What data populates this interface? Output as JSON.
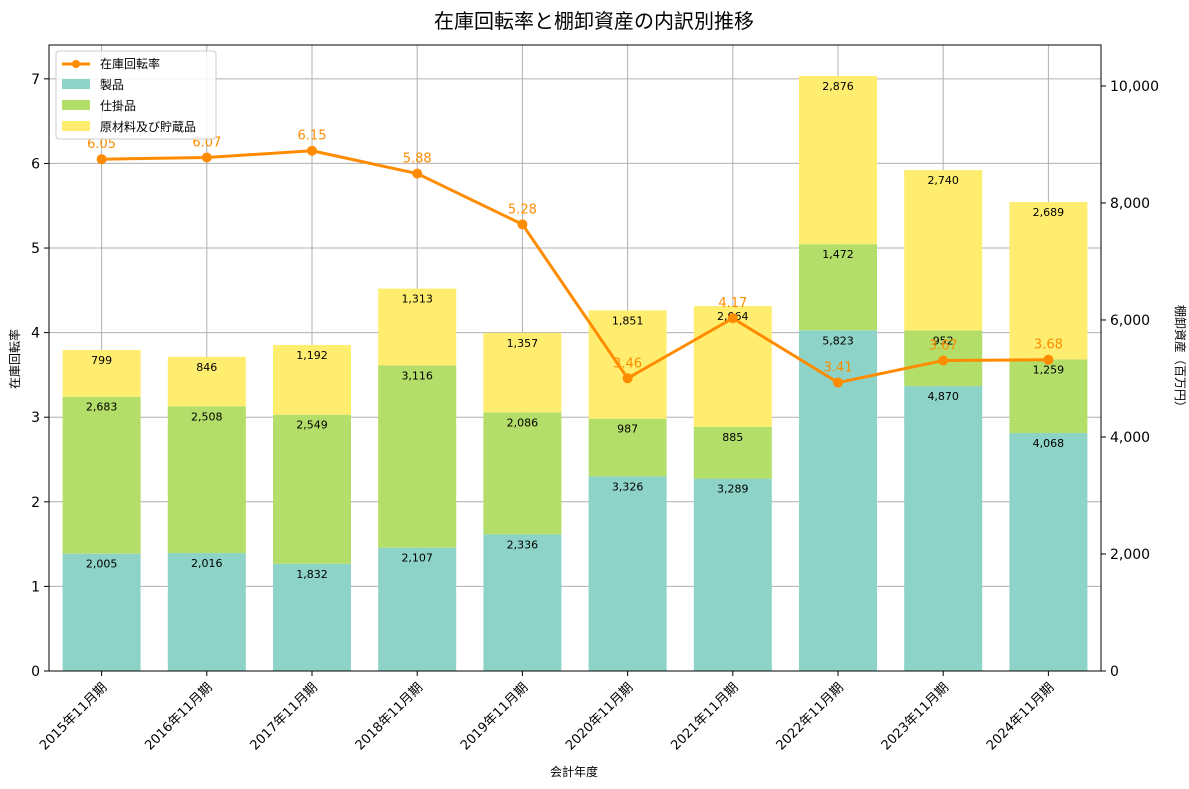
{
  "chart_data": {
    "type": "bar",
    "stacked": true,
    "title": "在庫回転率と棚卸資産の内訳別推移",
    "xlabel": "会計年度",
    "ylabel_left": "在庫回転率",
    "ylabel_right": "棚卸資産（百万円）",
    "categories": [
      "2015年11月期",
      "2016年11月期",
      "2017年11月期",
      "2018年11月期",
      "2019年11月期",
      "2020年11月期",
      "2021年11月期",
      "2022年11月期",
      "2023年11月期",
      "2024年11月期"
    ],
    "series": [
      {
        "name": "製品",
        "color": "#8dd3c7",
        "values": [
          2005,
          2016,
          1832,
          2107,
          2336,
          3326,
          3289,
          5823,
          4870,
          4068
        ]
      },
      {
        "name": "仕掛品",
        "color": "#b3de69",
        "values": [
          2683,
          2508,
          2549,
          3116,
          2086,
          987,
          885,
          1472,
          952,
          1259
        ]
      },
      {
        "name": "原材料及び貯蔵品",
        "color": "#ffed6f",
        "values": [
          799,
          846,
          1192,
          1313,
          1357,
          1851,
          2064,
          2876,
          2740,
          2689
        ]
      }
    ],
    "line_series": {
      "name": "在庫回転率",
      "color": "#ff8c00",
      "values": [
        6.05,
        6.07,
        6.15,
        5.88,
        5.28,
        3.46,
        4.17,
        3.41,
        3.67,
        3.68
      ]
    },
    "ylim_left": [
      0,
      7.4
    ],
    "ylim_right": [
      0,
      10700
    ],
    "yticks_left": [
      0,
      1,
      2,
      3,
      4,
      5,
      6,
      7
    ],
    "yticks_right": [
      0,
      2000,
      4000,
      6000,
      8000,
      10000
    ],
    "yticks_right_labels": [
      "0",
      "2,000",
      "4,000",
      "6,000",
      "8,000",
      "10,000"
    ],
    "grid": true,
    "legend_position": "top-left",
    "legend": [
      "在庫回転率",
      "製品",
      "仕掛品",
      "原材料及び貯蔵品"
    ]
  }
}
